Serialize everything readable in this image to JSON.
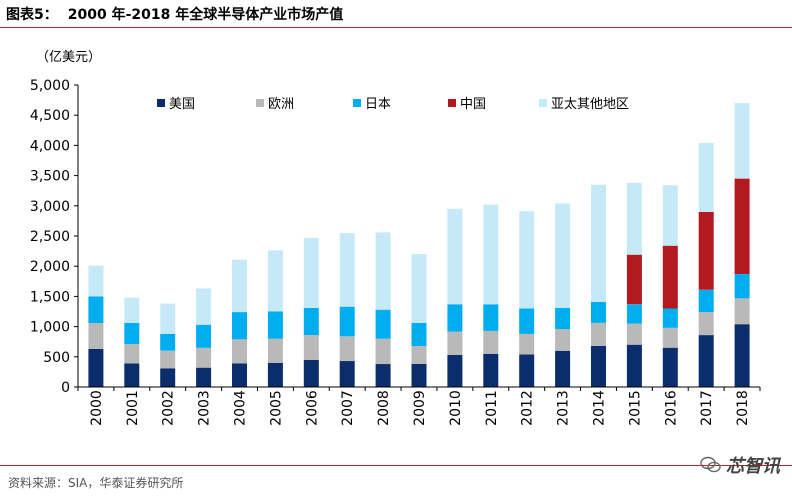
{
  "header": {
    "figure_no": "图表5：",
    "title": "2000 年-2018 年全球半导体产业市场产值"
  },
  "unit_label": "（亿美元）",
  "source": "资料来源：SIA，华泰证券研究所",
  "watermark": "芯智讯",
  "colors": {
    "us": "#0b2d6b",
    "europe": "#b9b9b9",
    "japan": "#00aeef",
    "china": "#b3191f",
    "apac": "#c6e9f8",
    "rule": "#b3272d"
  },
  "chart_data": {
    "type": "bar",
    "stacked": true,
    "categories": [
      "2000",
      "2001",
      "2002",
      "2003",
      "2004",
      "2005",
      "2006",
      "2007",
      "2008",
      "2009",
      "2010",
      "2011",
      "2012",
      "2013",
      "2014",
      "2015",
      "2016",
      "2017",
      "2018"
    ],
    "series": [
      {
        "name": "美国",
        "color": "#0b2d6b",
        "values": [
          630,
          390,
          310,
          320,
          390,
          400,
          450,
          430,
          380,
          380,
          530,
          550,
          540,
          600,
          680,
          700,
          650,
          860,
          1040
        ]
      },
      {
        "name": "欧洲",
        "color": "#b9b9b9",
        "values": [
          430,
          320,
          290,
          330,
          400,
          400,
          410,
          410,
          420,
          300,
          390,
          380,
          340,
          360,
          380,
          350,
          330,
          380,
          430
        ]
      },
      {
        "name": "日本",
        "color": "#00aeef",
        "values": [
          440,
          350,
          280,
          380,
          450,
          450,
          450,
          490,
          480,
          380,
          450,
          440,
          420,
          350,
          350,
          320,
          320,
          370,
          400
        ]
      },
      {
        "name": "中国",
        "color": "#b3191f",
        "values": [
          0,
          0,
          0,
          0,
          0,
          0,
          0,
          0,
          0,
          0,
          0,
          0,
          0,
          0,
          0,
          820,
          1040,
          1290,
          1580
        ]
      },
      {
        "name": "亚太其他地区",
        "color": "#c6e9f8",
        "values": [
          510,
          420,
          500,
          600,
          870,
          1010,
          1160,
          1220,
          1280,
          1140,
          1580,
          1650,
          1610,
          1730,
          1940,
          1190,
          1000,
          1140,
          1250
        ]
      }
    ],
    "ylim": [
      0,
      5000
    ],
    "yticks": [
      "0",
      "500",
      "1,000",
      "1,500",
      "2,000",
      "2,500",
      "3,000",
      "3,500",
      "4,000",
      "4,500",
      "5,000"
    ],
    "ytick_values": [
      0,
      500,
      1000,
      1500,
      2000,
      2500,
      3000,
      3500,
      4000,
      4500,
      5000
    ],
    "grid": false,
    "legend_position": "top"
  }
}
